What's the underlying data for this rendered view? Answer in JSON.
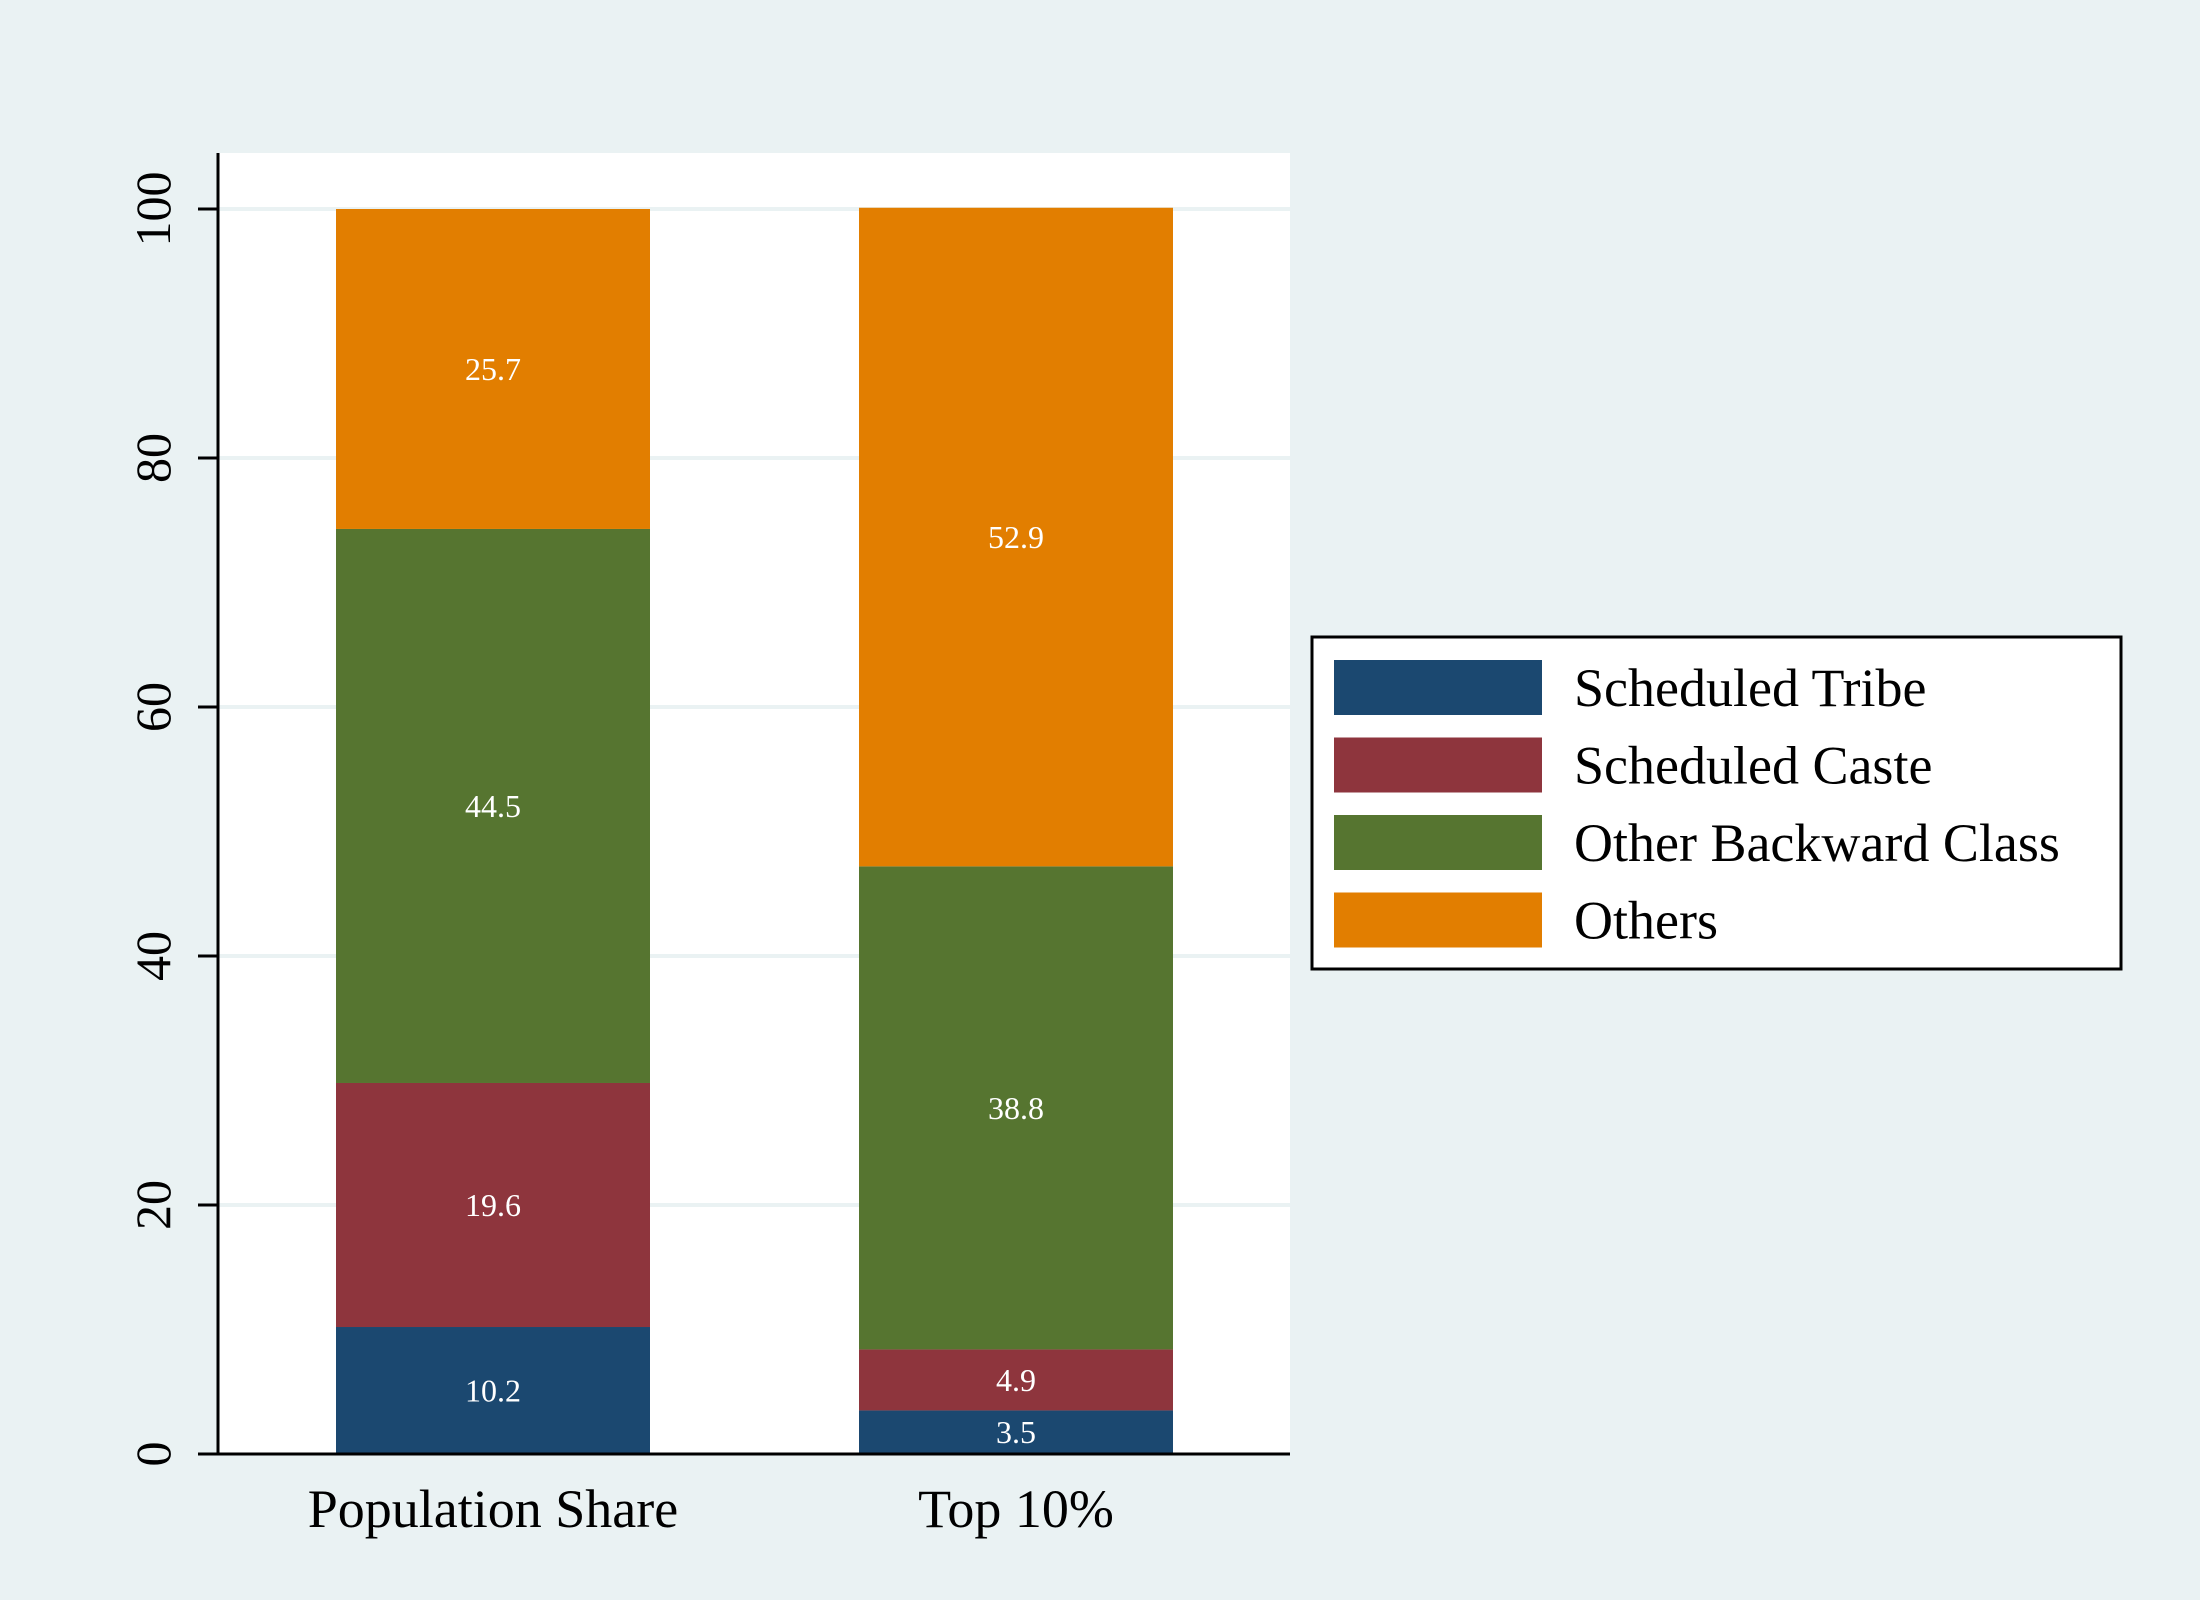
{
  "chart_data": {
    "type": "bar",
    "stacked": true,
    "title": "",
    "xlabel": "",
    "ylabel": "",
    "ylim": [
      0,
      100
    ],
    "yticks": [
      "0",
      "20",
      "40",
      "60",
      "80",
      "100"
    ],
    "categories": [
      "Population Share",
      "Top 10%"
    ],
    "series": [
      {
        "name": "Scheduled Tribe",
        "color": "#1b4870",
        "values": [
          10.2,
          3.5
        ],
        "labels": [
          "10.2",
          "3.5"
        ]
      },
      {
        "name": "Scheduled Caste",
        "color": "#8e353d",
        "values": [
          19.6,
          4.9
        ],
        "labels": [
          "19.6",
          "4.9"
        ]
      },
      {
        "name": "Other Backward Class",
        "color": "#567530",
        "values": [
          44.5,
          38.8
        ],
        "labels": [
          "44.5",
          "38.8"
        ]
      },
      {
        "name": "Others",
        "color": "#e27e00",
        "values": [
          25.7,
          52.9
        ],
        "labels": [
          "25.7",
          "52.9"
        ]
      }
    ],
    "grid": true,
    "legend_position": "right"
  },
  "colors": {
    "background": "#eaf2f3",
    "plot_background": "#ffffff",
    "gridline": "#eaf2f3",
    "axis": "#000000"
  }
}
